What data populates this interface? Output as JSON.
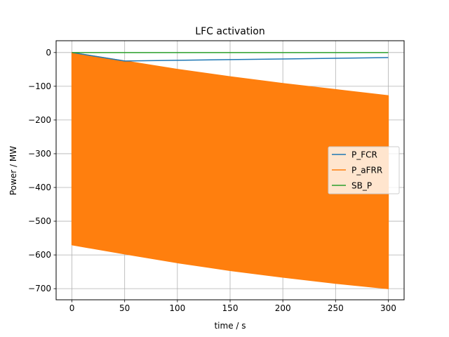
{
  "chart_data": {
    "type": "line",
    "title": "LFC activation",
    "xlabel": "time / s",
    "ylabel": "Power / MW",
    "xlim": [
      -15,
      315
    ],
    "ylim": [
      -733,
      35
    ],
    "xticks": [
      0,
      50,
      100,
      150,
      200,
      250,
      300
    ],
    "yticks": [
      0,
      -100,
      -200,
      -300,
      -400,
      -500,
      -600,
      -700
    ],
    "grid": true,
    "legend_position": "center-right",
    "series": [
      {
        "name": "P_FCR",
        "color": "#1f77b4",
        "x": [
          0,
          50,
          100,
          150,
          200,
          250,
          300
        ],
        "y": [
          0,
          -25,
          -23,
          -21,
          -19,
          -17,
          -15
        ]
      },
      {
        "name": "P_aFRR",
        "color": "#ff7f0e",
        "band": true,
        "x": [
          0,
          50,
          100,
          150,
          200,
          250,
          300
        ],
        "upper": [
          0,
          -25,
          -50,
          -72,
          -92,
          -110,
          -128
        ],
        "lower": [
          -570,
          -597,
          -623,
          -646,
          -666,
          -684,
          -700
        ]
      },
      {
        "name": "SB_P",
        "color": "#2ca02c",
        "x": [
          0,
          300
        ],
        "y": [
          0,
          0
        ]
      }
    ]
  }
}
